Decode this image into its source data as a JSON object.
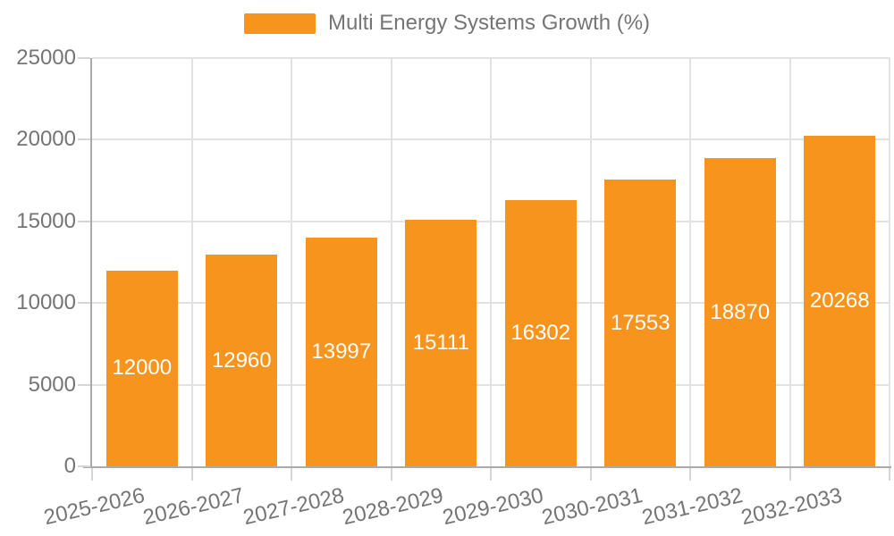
{
  "legend": {
    "label": "Multi Energy Systems Growth (%)"
  },
  "chart_data": {
    "type": "bar",
    "title": "",
    "series_name": "Multi Energy Systems Growth (%)",
    "categories": [
      "2025-2026",
      "2026-2027",
      "2027-2028",
      "2028-2029",
      "2029-2030",
      "2030-2031",
      "2031-2032",
      "2032-2033"
    ],
    "values": [
      12000,
      12960,
      13997,
      15111,
      16302,
      17553,
      18870,
      20268
    ],
    "data_labels_shown": true,
    "xlabel": "",
    "ylabel": "",
    "ylim": [
      0,
      25000
    ],
    "ytick_interval": 5000,
    "yticks": [
      0,
      5000,
      10000,
      15000,
      20000,
      25000
    ],
    "grid": "on",
    "legend_position": "top-center",
    "x_label_rotation_deg": -13,
    "colors": {
      "bar": "#F7941E",
      "bar_value_label": "#FFFFFF",
      "axis_text": "#757575",
      "legend_text": "#757575",
      "gridline": "#E2E2E2",
      "axis_line": "#AAAAAA",
      "tick": "#D5D5D5",
      "background": "#FFFFFF"
    }
  }
}
